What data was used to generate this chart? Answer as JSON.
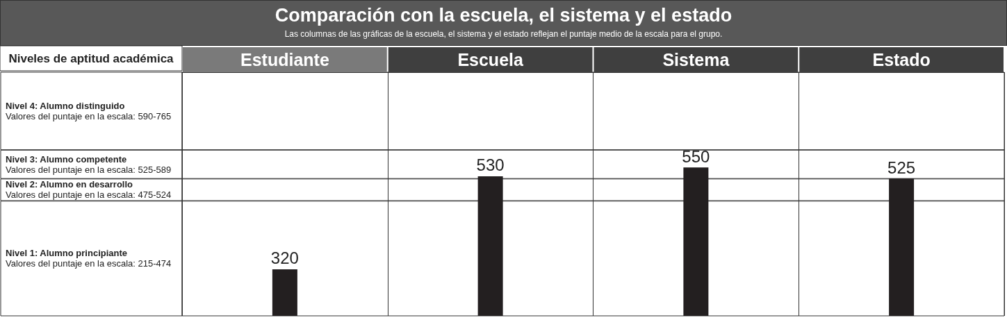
{
  "chart_data": {
    "type": "bar",
    "title": "Comparación con la escuela, el sistema y el estado",
    "subtitle": "Las columnas de las gráficas de la escuela, el sistema y el estado reflejan el puntaje medio de la escala para el grupo.",
    "ylabel": "Niveles de aptitud académica",
    "categories": [
      "Estudiante",
      "Escuela",
      "Sistema",
      "Estado"
    ],
    "values": [
      320,
      530,
      550,
      525
    ],
    "color": "#231f20",
    "ylim": [
      215,
      765
    ],
    "data_labels": true,
    "grid": "x",
    "bands": [
      {
        "axis": "y",
        "color": "#ffffff",
        "from": 590,
        "to": 765,
        "label": "Nivel 4: Alumno distinguido\nValores del puntaje en la escala: 590-765"
      },
      {
        "axis": "y",
        "color": "#ffffff",
        "from": 525,
        "to": 589,
        "label": "Nivel 3: Alumno competente\nValores del puntaje en la escala: 525-589"
      },
      {
        "axis": "y",
        "color": "#ffffff",
        "from": 475,
        "to": 524,
        "label": "Nivel 2: Alumno en desarrollo\nValores del puntaje en la escala: 475-524"
      },
      {
        "axis": "y",
        "color": "#ffffff",
        "from": 215,
        "to": 474,
        "label": "Nivel 1: Alumno principiante\nValores del puntaje en la escala: 215-474"
      }
    ]
  }
}
